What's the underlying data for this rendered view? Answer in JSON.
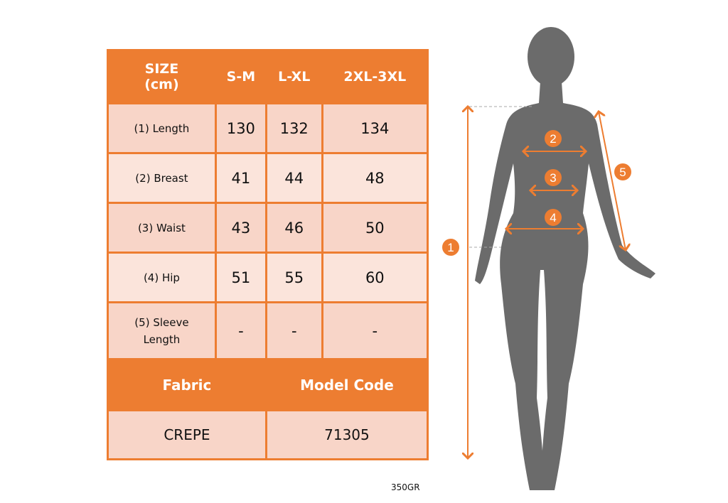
{
  "table": {
    "header": [
      "SIZE\n(cm)",
      "S-M",
      "L-XL",
      "2XL-3XL"
    ],
    "rows": [
      {
        "label": "(1) Length",
        "values": [
          "130",
          "132",
          "134"
        ]
      },
      {
        "label": "(2) Breast",
        "values": [
          "41",
          "44",
          "48"
        ]
      },
      {
        "label": "(3) Waist",
        "values": [
          "43",
          "46",
          "50"
        ]
      },
      {
        "label": "(4) Hip",
        "values": [
          "51",
          "55",
          "60"
        ]
      },
      {
        "label": "(5) Sleeve Length",
        "values": [
          "-",
          "-",
          "-"
        ]
      }
    ],
    "fabric_label": "Fabric",
    "model_code_label": "Model Code",
    "fabric": "CREPE",
    "model_code": "71305"
  },
  "weight": "350GR",
  "figure": {
    "markers": [
      "1",
      "2",
      "3",
      "4",
      "5"
    ]
  },
  "colors": {
    "accent": "#ED7D31",
    "cell_dark": "#F8D5C8",
    "cell_light": "#FBE4DB",
    "silhouette": "#6B6B6B"
  }
}
